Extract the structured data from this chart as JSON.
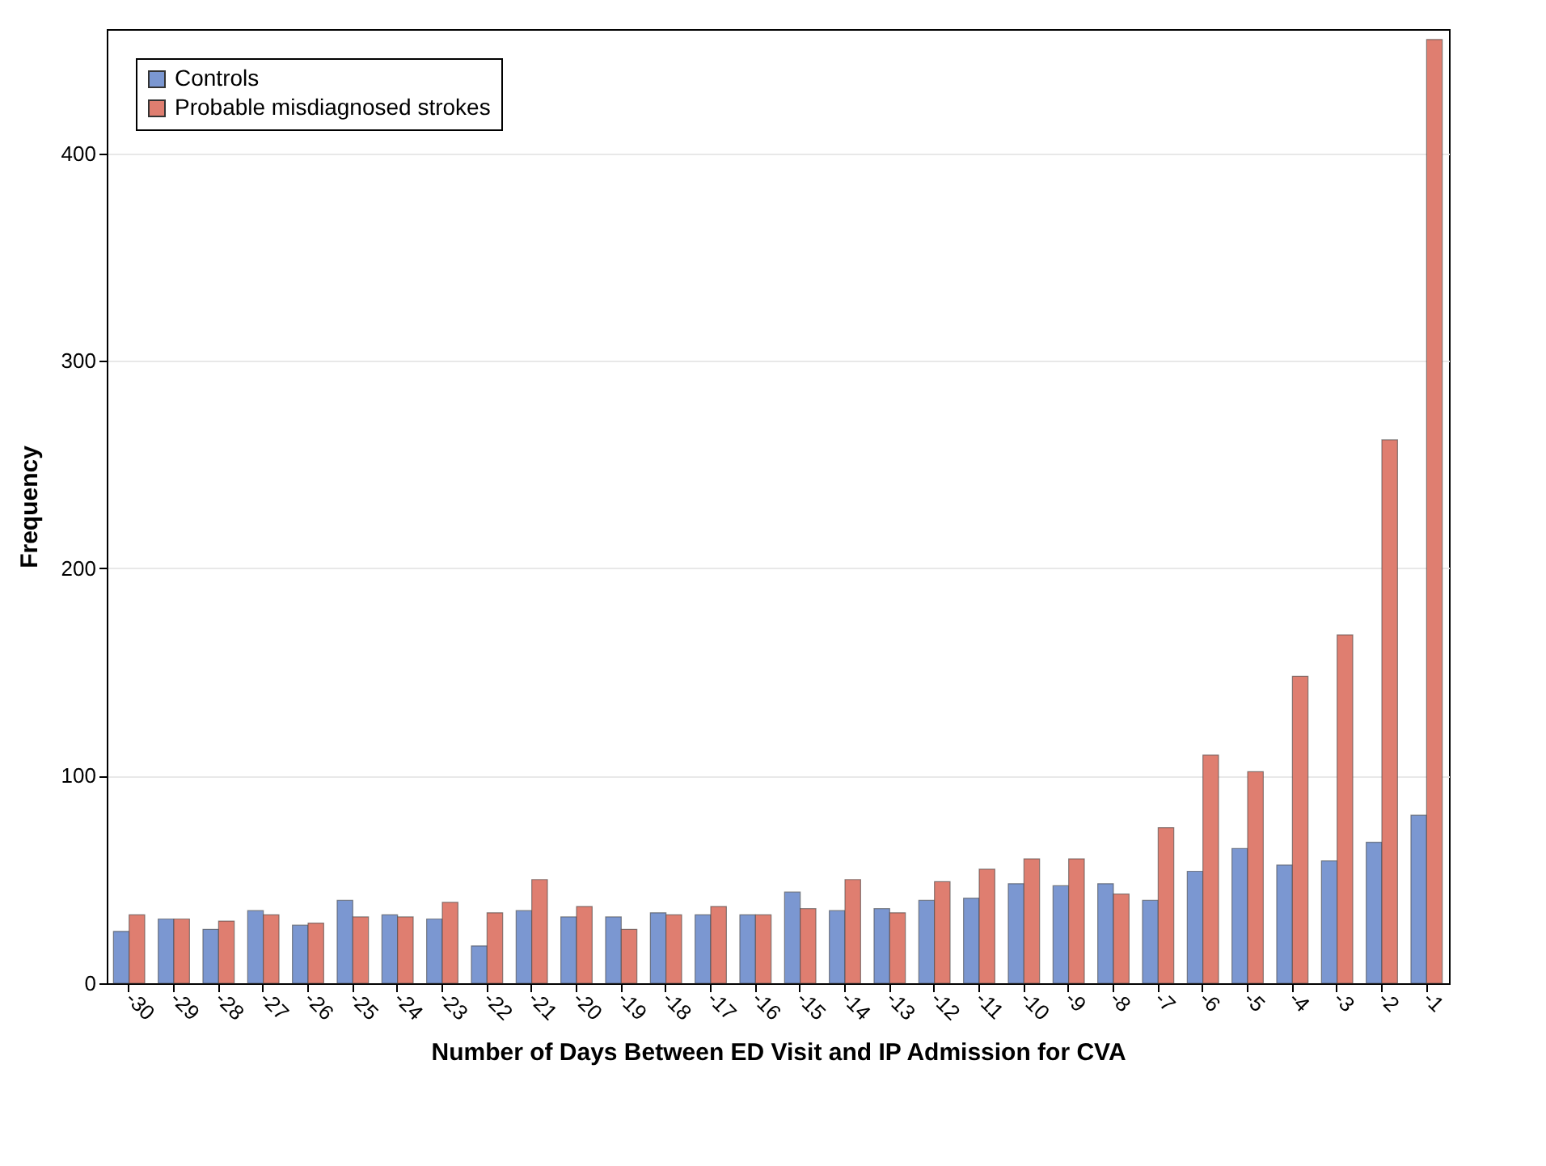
{
  "chart_data": {
    "type": "bar",
    "xlabel": "Number of Days Between ED Visit and IP Admission for CVA",
    "ylabel": "Frequency",
    "categories": [
      "-30",
      "-29",
      "-28",
      "-27",
      "-26",
      "-25",
      "-24",
      "-23",
      "-22",
      "-21",
      "-20",
      "-19",
      "-18",
      "-17",
      "-16",
      "-15",
      "-14",
      "-13",
      "-12",
      "-11",
      "-10",
      "-9",
      "-8",
      "-7",
      "-6",
      "-5",
      "-4",
      "-3",
      "-2",
      "-1"
    ],
    "series": [
      {
        "name": "Controls",
        "color": "#7b97d1",
        "values": [
          25,
          31,
          26,
          35,
          28,
          40,
          33,
          31,
          18,
          35,
          32,
          32,
          34,
          33,
          33,
          44,
          35,
          36,
          40,
          41,
          48,
          47,
          48,
          40,
          54,
          65,
          57,
          59,
          68,
          81
        ]
      },
      {
        "name": "Probable misdiagnosed strokes",
        "color": "#df7e70",
        "values": [
          33,
          31,
          30,
          33,
          29,
          32,
          32,
          39,
          34,
          50,
          37,
          26,
          33,
          37,
          33,
          36,
          50,
          34,
          49,
          55,
          60,
          60,
          43,
          75,
          110,
          102,
          148,
          168,
          262,
          455
        ]
      }
    ],
    "ylim": [
      0,
      460
    ],
    "yticks": [
      0,
      100,
      200,
      300,
      400
    ],
    "grid": "y",
    "legend": "top left"
  }
}
